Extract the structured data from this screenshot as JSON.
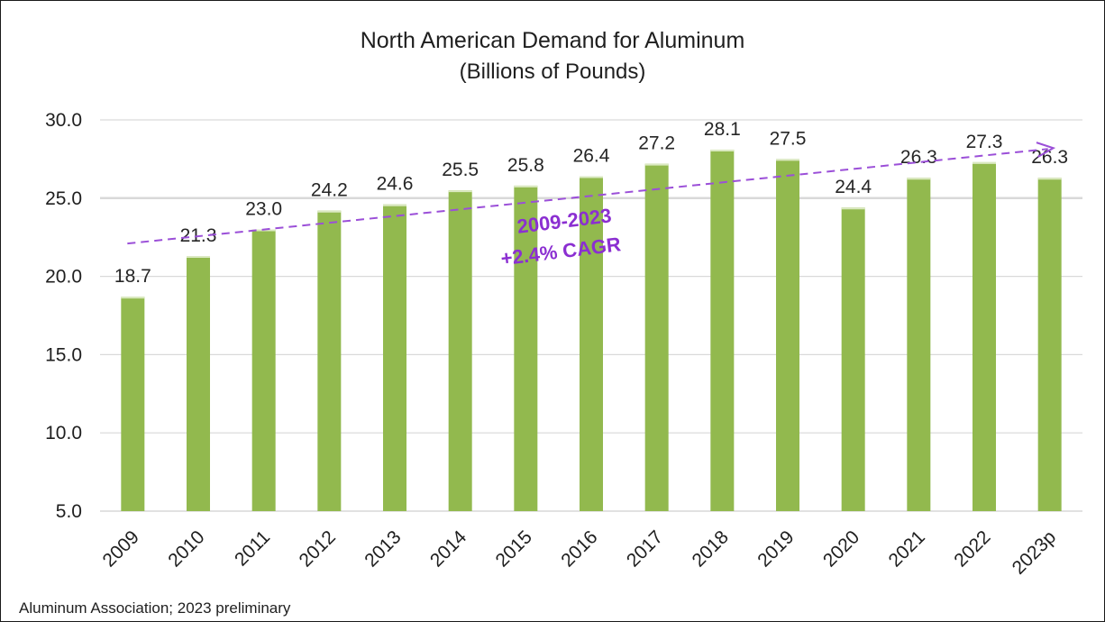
{
  "chart_data": {
    "type": "bar",
    "title": "North American Demand for Aluminum",
    "subtitle": "(Billions of Pounds)",
    "categories": [
      "2009",
      "2010",
      "2011",
      "2012",
      "2013",
      "2014",
      "2015",
      "2016",
      "2017",
      "2018",
      "2019",
      "2020",
      "2021",
      "2022",
      "2023p"
    ],
    "values": [
      18.7,
      21.3,
      23.0,
      24.2,
      24.6,
      25.5,
      25.8,
      26.4,
      27.2,
      28.1,
      27.5,
      24.4,
      26.3,
      27.3,
      26.3
    ],
    "data_labels": [
      "18.7",
      "21.3",
      "23.0",
      "24.2",
      "24.6",
      "25.5",
      "25.8",
      "26.4",
      "27.2",
      "28.1",
      "27.5",
      "24.4",
      "26.3",
      "27.3",
      "26.3"
    ],
    "y_ticks": [
      "5.0",
      "10.0",
      "15.0",
      "20.0",
      "25.0",
      "30.0"
    ],
    "ylim": [
      5,
      30
    ],
    "bar_color": "#92b94e",
    "grid": true,
    "trendline": {
      "style": "dashed-arrow",
      "color": "#9b4fd8",
      "start": {
        "category": "2009",
        "value": 22.1
      },
      "end": {
        "category": "2023p",
        "value": 28.2
      }
    },
    "annotation": {
      "lines": [
        "2009-2023",
        "+2.4% CAGR"
      ],
      "color": "#8b2fd1"
    }
  },
  "source_note": "Aluminum Association; 2023 preliminary"
}
